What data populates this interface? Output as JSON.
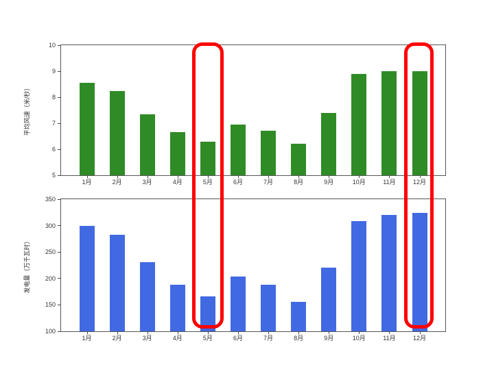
{
  "page": {
    "background": "#ffffff"
  },
  "chart_data": [
    {
      "type": "bar",
      "title": "",
      "categories": [
        "1月",
        "2月",
        "3月",
        "4月",
        "5月",
        "6月",
        "7月",
        "8月",
        "9月",
        "10月",
        "11月",
        "12月"
      ],
      "values": [
        8.55,
        8.25,
        7.35,
        6.65,
        6.3,
        6.95,
        6.7,
        6.2,
        7.4,
        8.9,
        9.0,
        9.0
      ],
      "xlabel": "",
      "ylabel": "平均风速（米/秒）",
      "ylim": [
        5,
        10
      ],
      "yticks": [
        "5",
        "6",
        "7",
        "8",
        "9",
        "10"
      ],
      "ytick_values": [
        5,
        6,
        7,
        8,
        9,
        10
      ],
      "bar_color": "#2e8b26",
      "grid": false,
      "legend": "none"
    },
    {
      "type": "bar",
      "title": "",
      "categories": [
        "1月",
        "2月",
        "3月",
        "4月",
        "5月",
        "6月",
        "7月",
        "8月",
        "9月",
        "10月",
        "11月",
        "12月"
      ],
      "values": [
        299,
        283,
        231,
        188,
        166,
        204,
        188,
        156,
        220,
        308,
        320,
        324
      ],
      "xlabel": "",
      "ylabel": "发电量（万千瓦时）",
      "ylim": [
        100,
        350
      ],
      "yticks": [
        "100",
        "150",
        "200",
        "250",
        "300",
        "350"
      ],
      "ytick_values": [
        100,
        150,
        200,
        250,
        300,
        350
      ],
      "bar_color": "#4169e1",
      "grid": false,
      "legend": "none"
    }
  ],
  "highlights": [
    {
      "name": "may-column",
      "month": "5月",
      "color": "#ff0000"
    },
    {
      "name": "december-column",
      "month": "12月",
      "color": "#ff0000"
    }
  ]
}
